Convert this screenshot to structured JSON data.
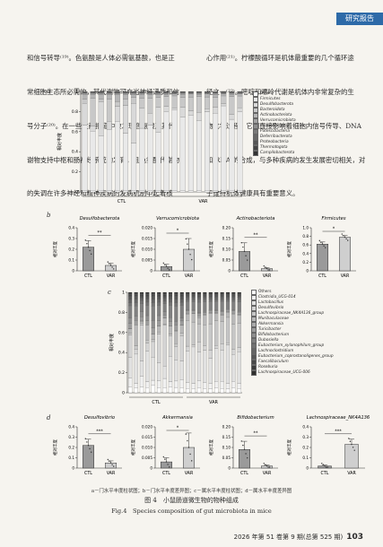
{
  "header": {
    "section_badge": "研究报告"
  },
  "body": {
    "left_lines": [
      "和信号转导⁽¹⁹⁾。色氨酸是人体必需氨基酸，也是正",
      "常细胞生态所必需的，其代谢物可充当神经递质和信",
      "号分子⁽²⁰⁾。在一些文献报道中被发现色氨酸及其代",
      "谢物支持中枢和肠神经系统的发育，且色氨酸代谢物",
      "的失调在许多神经和精神疾病的发病机制中起着核"
    ],
    "right_lines": [
      "心作用⁽²¹⁾。柠檬酸循环是机体最重要的几个循环途",
      "径之一⁽²²⁾。嘧啶和嘌呤代谢是机体内非常复杂的生",
      "物化学过程，它们直接影响着细胞内信号传导、DNA",
      "和 RNA 的合成，与多种疾病的发生发展密切相关，对",
      "于维持机体健康具有重要意义。"
    ]
  },
  "figure": {
    "panel_letters": [
      "a",
      "b",
      "c",
      "d"
    ],
    "caption_note": "a－门水平丰度柱状图；b－门水平丰度差异图；c－属水平丰度柱状图；d－属水平丰度差异图",
    "caption_cn": "图 4　小鼠肠道微生物的物种组成",
    "caption_en": "Fig.4　Species composition of gut microbiota in mice"
  },
  "colors": {
    "phylum": [
      "#ffffff",
      "#e9e9e9",
      "#d9d9d9",
      "#c8c8c8",
      "#b5b5b5",
      "#a2a2a2",
      "#8e8e8e",
      "#7a7a7a",
      "#676767",
      "#555555",
      "#434343",
      "#333333"
    ],
    "genus": [
      "#ffffff",
      "#f0f0f0",
      "#e1e1e1",
      "#d4d4d4",
      "#c6c6c6",
      "#b8b8b8",
      "#aaaaaa",
      "#9c9c9c",
      "#8e8e8e",
      "#808080",
      "#727272",
      "#646464",
      "#565656",
      "#484848",
      "#3b3b3b",
      "#2e2e2e"
    ]
  },
  "chart_data": [
    {
      "type": "bar",
      "stacked": true,
      "panel": "a",
      "ylabel": "相对丰度",
      "yticks": [
        0,
        0.2,
        0.4,
        0.6,
        0.8,
        1.0
      ],
      "ylim": [
        0,
        1
      ],
      "groups": [
        "CTL",
        "VAR"
      ],
      "samples_per_group": 10,
      "legend_position": "top-right",
      "series": [
        {
          "name": "Others",
          "values": [
            0.01,
            0.01,
            0.01,
            0.01,
            0.01,
            0.01,
            0.01,
            0.01,
            0.01,
            0.01,
            0.01,
            0.01,
            0.01,
            0.01,
            0.01,
            0.01,
            0.01,
            0.01,
            0.01,
            0.01
          ]
        },
        {
          "name": "Firmicutes",
          "values": [
            0.66,
            0.6,
            0.55,
            0.62,
            0.7,
            0.58,
            0.48,
            0.63,
            0.66,
            0.59,
            0.8,
            0.82,
            0.74,
            0.76,
            0.71,
            0.8,
            0.78,
            0.86,
            0.72,
            0.79
          ]
        },
        {
          "name": "Desulfobacterota",
          "values": [
            0.22,
            0.05,
            0.35,
            0.08,
            0.15,
            0.28,
            0.4,
            0.2,
            0.12,
            0.25,
            0.05,
            0.02,
            0.1,
            0.04,
            0.08,
            0.03,
            0.06,
            0.02,
            0.05,
            0.04
          ]
        },
        {
          "name": "Bacteroidota",
          "values": [
            0.04,
            0.28,
            0.02,
            0.22,
            0.05,
            0.06,
            0.06,
            0.1,
            0.15,
            0.1,
            0.1,
            0.12,
            0.1,
            0.14,
            0.16,
            0.12,
            0.1,
            0.08,
            0.18,
            0.12
          ]
        },
        {
          "name": "Actinobacteriota",
          "values": [
            0.05,
            0.04,
            0.05,
            0.05,
            0.07,
            0.05,
            0.03,
            0.04,
            0.04,
            0.03,
            0.02,
            0.02,
            0.03,
            0.03,
            0.02,
            0.03,
            0.03,
            0.02,
            0.02,
            0.02
          ]
        },
        {
          "name": "Verrucomicrobiota",
          "values": [
            0.01,
            0.01,
            0.01,
            0.01,
            0.01,
            0.01,
            0.01,
            0.01,
            0.01,
            0.01,
            0.01,
            0.005,
            0.01,
            0.005,
            0.01,
            0.005,
            0.01,
            0.005,
            0.01,
            0.005
          ]
        },
        {
          "name": "Cyanobacteria",
          "values": [
            0.005,
            0.005,
            0.005,
            0.005,
            0.005,
            0.005,
            0.005,
            0.005,
            0.005,
            0.005,
            0.005,
            0.005,
            0.005,
            0.005,
            0.005,
            0.005,
            0.005,
            0.005,
            0.005,
            0.005
          ]
        },
        {
          "name": "Patescibacteria",
          "values": [
            0.005,
            0.005,
            0.005,
            0.005,
            0.005,
            0.005,
            0.005,
            0.005,
            0.005,
            0.005,
            0.005,
            0.005,
            0.005,
            0.005,
            0.005,
            0.005,
            0.005,
            0.005,
            0.005,
            0.005
          ]
        },
        {
          "name": "Deferribacterota",
          "values": [
            0.003,
            0.003,
            0.003,
            0.003,
            0.003,
            0.003,
            0.003,
            0.003,
            0.003,
            0.003,
            0.003,
            0.003,
            0.003,
            0.003,
            0.003,
            0.003,
            0.003,
            0.003,
            0.003,
            0.003
          ]
        },
        {
          "name": "Proteobacteria",
          "values": [
            0.003,
            0.003,
            0.003,
            0.003,
            0.003,
            0.003,
            0.003,
            0.003,
            0.003,
            0.003,
            0.003,
            0.003,
            0.003,
            0.003,
            0.003,
            0.003,
            0.003,
            0.003,
            0.003,
            0.003
          ]
        },
        {
          "name": "Thermotogota",
          "values": [
            0.002,
            0.002,
            0.002,
            0.002,
            0.002,
            0.002,
            0.002,
            0.002,
            0.002,
            0.002,
            0.002,
            0.002,
            0.002,
            0.002,
            0.002,
            0.002,
            0.002,
            0.002,
            0.002,
            0.002
          ]
        },
        {
          "name": "Campilobacterota",
          "values": [
            0.002,
            0.002,
            0.002,
            0.002,
            0.002,
            0.002,
            0.002,
            0.002,
            0.002,
            0.002,
            0.002,
            0.002,
            0.002,
            0.002,
            0.002,
            0.002,
            0.002,
            0.002,
            0.002,
            0.002
          ]
        }
      ]
    },
    {
      "type": "bar",
      "panel": "b",
      "title": "Desulfobacterota",
      "ylabel": "相对丰度",
      "categories": [
        "CTL",
        "VAR"
      ],
      "values": [
        0.22,
        0.05
      ],
      "errors": [
        0.06,
        0.02
      ],
      "ylim": [
        0,
        0.4
      ],
      "yticks": [
        "0",
        "0.1",
        "0.2",
        "0.3",
        "0.4"
      ],
      "significance": "**"
    },
    {
      "type": "bar",
      "panel": "b",
      "title": "Verrucomicrobiota",
      "ylabel": "相对丰度",
      "categories": [
        "CTL",
        "VAR"
      ],
      "values": [
        0.002,
        0.01
      ],
      "errors": [
        0.001,
        0.005
      ],
      "ylim": [
        0,
        0.02
      ],
      "yticks": [
        "0",
        "0.005",
        "0.010",
        "0.015",
        "0.020"
      ],
      "significance": "*"
    },
    {
      "type": "bar",
      "panel": "b",
      "title": "Actinobacteriota",
      "ylabel": "相对丰度",
      "categories": [
        "CTL",
        "VAR"
      ],
      "values": [
        0.09,
        0.01
      ],
      "errors": [
        0.04,
        0.005
      ],
      "ylim": [
        0,
        0.2
      ],
      "yticks": [
        "0",
        "0.05",
        "0.10",
        "0.15",
        "0.20"
      ],
      "significance": "**"
    },
    {
      "type": "bar",
      "panel": "b",
      "title": "Firmicutes",
      "ylabel": "相对丰度",
      "categories": [
        "CTL",
        "VAR"
      ],
      "values": [
        0.62,
        0.78
      ],
      "errors": [
        0.05,
        0.04
      ],
      "ylim": [
        0,
        1.0
      ],
      "yticks": [
        "0",
        "0.2",
        "0.4",
        "0.6",
        "0.8",
        "1.0"
      ],
      "significance": "*"
    },
    {
      "type": "bar",
      "stacked": true,
      "panel": "c",
      "ylabel": "相对丰度",
      "yticks": [
        0,
        0.2,
        0.4,
        0.6,
        0.8,
        1.0
      ],
      "ylim": [
        0,
        1
      ],
      "groups": [
        "CTL",
        "VAR"
      ],
      "samples_per_group": 10,
      "legend_position": "top-right",
      "series": [
        {
          "name": "Others",
          "values": [
            0.06,
            0.05,
            0.06,
            0.05,
            0.07,
            0.05,
            0.05,
            0.06,
            0.05,
            0.05,
            0.04,
            0.04,
            0.05,
            0.04,
            0.04,
            0.05,
            0.04,
            0.04,
            0.05,
            0.04
          ]
        },
        {
          "name": "Clostridia_UCG-014",
          "values": [
            0.08,
            0.04,
            0.1,
            0.06,
            0.05,
            0.07,
            0.09,
            0.05,
            0.06,
            0.08,
            0.06,
            0.05,
            0.07,
            0.06,
            0.05,
            0.06,
            0.07,
            0.05,
            0.06,
            0.05
          ]
        },
        {
          "name": "Lactobacillus",
          "values": [
            0.2,
            0.28,
            0.15,
            0.3,
            0.22,
            0.18,
            0.12,
            0.25,
            0.2,
            0.18,
            0.3,
            0.35,
            0.28,
            0.3,
            0.25,
            0.32,
            0.3,
            0.38,
            0.26,
            0.3
          ]
        },
        {
          "name": "Desulfovibrio",
          "values": [
            0.22,
            0.05,
            0.35,
            0.08,
            0.15,
            0.28,
            0.4,
            0.2,
            0.12,
            0.25,
            0.05,
            0.02,
            0.1,
            0.04,
            0.08,
            0.03,
            0.06,
            0.02,
            0.05,
            0.04
          ]
        },
        {
          "name": "Lachnospiraceae_NK4A136_group",
          "values": [
            0.02,
            0.03,
            0.02,
            0.03,
            0.02,
            0.02,
            0.01,
            0.02,
            0.03,
            0.02,
            0.25,
            0.22,
            0.18,
            0.2,
            0.26,
            0.24,
            0.22,
            0.25,
            0.24,
            0.23
          ]
        },
        {
          "name": "Muribaculaceae",
          "values": [
            0.04,
            0.2,
            0.02,
            0.15,
            0.05,
            0.06,
            0.06,
            0.08,
            0.12,
            0.08,
            0.06,
            0.08,
            0.06,
            0.09,
            0.1,
            0.07,
            0.06,
            0.05,
            0.1,
            0.08
          ]
        },
        {
          "name": "Akkermansia",
          "values": [
            0.002,
            0.002,
            0.002,
            0.002,
            0.002,
            0.002,
            0.002,
            0.002,
            0.002,
            0.002,
            0.01,
            0.005,
            0.02,
            0.005,
            0.01,
            0.008,
            0.012,
            0.006,
            0.01,
            0.008
          ]
        },
        {
          "name": "Turicibacter",
          "values": [
            0.05,
            0.04,
            0.04,
            0.04,
            0.06,
            0.05,
            0.03,
            0.04,
            0.05,
            0.04,
            0.02,
            0.02,
            0.02,
            0.02,
            0.02,
            0.02,
            0.02,
            0.02,
            0.02,
            0.02
          ]
        },
        {
          "name": "Bifidobacterium",
          "values": [
            0.05,
            0.04,
            0.05,
            0.05,
            0.07,
            0.05,
            0.03,
            0.04,
            0.04,
            0.03,
            0.01,
            0.01,
            0.01,
            0.01,
            0.01,
            0.01,
            0.01,
            0.01,
            0.01,
            0.01
          ]
        },
        {
          "name": "Dubosiella",
          "values": [
            0.12,
            0.1,
            0.08,
            0.1,
            0.14,
            0.1,
            0.08,
            0.12,
            0.14,
            0.12,
            0.08,
            0.08,
            0.1,
            0.09,
            0.08,
            0.08,
            0.09,
            0.07,
            0.08,
            0.09
          ]
        },
        {
          "name": "Eubacterium_xylanophilum_group",
          "values": [
            0.03,
            0.03,
            0.03,
            0.03,
            0.03,
            0.03,
            0.02,
            0.03,
            0.03,
            0.03,
            0.02,
            0.02,
            0.03,
            0.02,
            0.02,
            0.02,
            0.02,
            0.02,
            0.02,
            0.02
          ]
        },
        {
          "name": "Lachnoclostridium",
          "values": [
            0.03,
            0.03,
            0.02,
            0.03,
            0.03,
            0.03,
            0.03,
            0.03,
            0.03,
            0.03,
            0.02,
            0.02,
            0.02,
            0.02,
            0.02,
            0.02,
            0.02,
            0.02,
            0.02,
            0.02
          ]
        },
        {
          "name": "Eubacterium_coprostanoligenes_group",
          "values": [
            0.03,
            0.03,
            0.02,
            0.03,
            0.03,
            0.03,
            0.02,
            0.03,
            0.03,
            0.03,
            0.02,
            0.02,
            0.02,
            0.02,
            0.02,
            0.02,
            0.02,
            0.02,
            0.02,
            0.02
          ]
        },
        {
          "name": "Faecalibaculum",
          "values": [
            0.02,
            0.02,
            0.02,
            0.02,
            0.02,
            0.02,
            0.02,
            0.02,
            0.02,
            0.02,
            0.01,
            0.01,
            0.01,
            0.01,
            0.01,
            0.01,
            0.01,
            0.01,
            0.01,
            0.01
          ]
        },
        {
          "name": "Roseburia",
          "values": [
            0.01,
            0.01,
            0.01,
            0.01,
            0.01,
            0.01,
            0.01,
            0.01,
            0.01,
            0.01,
            0.01,
            0.01,
            0.01,
            0.01,
            0.01,
            0.01,
            0.01,
            0.01,
            0.01,
            0.01
          ]
        },
        {
          "name": "Lachnospiraceae_UCG-006",
          "values": [
            0.01,
            0.01,
            0.01,
            0.01,
            0.01,
            0.01,
            0.01,
            0.01,
            0.01,
            0.01,
            0.01,
            0.01,
            0.01,
            0.01,
            0.01,
            0.01,
            0.01,
            0.01,
            0.01,
            0.01
          ]
        }
      ]
    },
    {
      "type": "bar",
      "panel": "d",
      "title": "Desulfovibrio",
      "ylabel": "相对丰度",
      "categories": [
        "CTL",
        "VAR"
      ],
      "values": [
        0.22,
        0.05
      ],
      "errors": [
        0.06,
        0.02
      ],
      "ylim": [
        0,
        0.4
      ],
      "yticks": [
        "0",
        "0.1",
        "0.2",
        "0.3",
        "0.4"
      ],
      "significance": "***"
    },
    {
      "type": "bar",
      "panel": "d",
      "title": "Akkermansia",
      "ylabel": "相对丰度",
      "categories": [
        "CTL",
        "VAR"
      ],
      "values": [
        0.003,
        0.01
      ],
      "errors": [
        0.002,
        0.007
      ],
      "ylim": [
        0,
        0.02
      ],
      "yticks": [
        "0",
        "0.005",
        "0.010",
        "0.015",
        "0.020"
      ],
      "significance": "*"
    },
    {
      "type": "bar",
      "panel": "d",
      "title": "Bifidobacterium",
      "ylabel": "相对丰度",
      "categories": [
        "CTL",
        "VAR"
      ],
      "values": [
        0.09,
        0.01
      ],
      "errors": [
        0.04,
        0.005
      ],
      "ylim": [
        0,
        0.2
      ],
      "yticks": [
        "0",
        "0.05",
        "0.10",
        "0.15",
        "0.20"
      ],
      "significance": "**"
    },
    {
      "type": "bar",
      "panel": "d",
      "title": "Lachnospiraceae_NK4A136",
      "ylabel": "相对丰度",
      "categories": [
        "CTL",
        "VAR"
      ],
      "values": [
        0.02,
        0.23
      ],
      "errors": [
        0.01,
        0.05
      ],
      "ylim": [
        0,
        0.4
      ],
      "yticks": [
        "0",
        "0.1",
        "0.2",
        "0.3",
        "0.4"
      ],
      "significance": "***"
    }
  ],
  "footer": {
    "journal": "2026 年第 51 卷第 9 期(总第 525 期)",
    "page": "103"
  }
}
